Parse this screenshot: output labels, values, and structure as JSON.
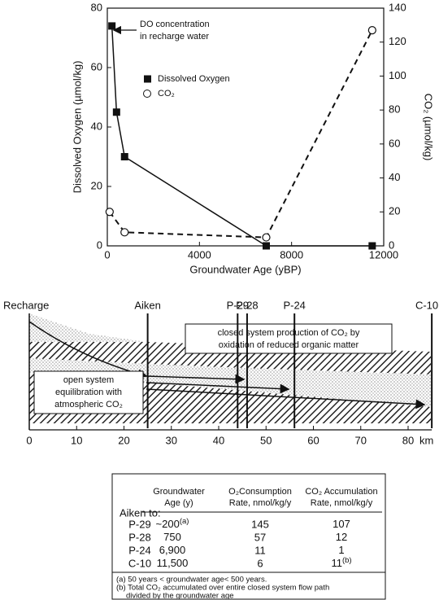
{
  "chart_data": {
    "type": "scatter",
    "xlabel": "Groundwater Age (yBP)",
    "ylabel": "Dissolved Oxygen (µmol/kg)",
    "y2label": "CO₂ (µmol/kg)",
    "annotation": [
      "DO concentration",
      "in recharge water"
    ],
    "xlim": [
      0,
      12000
    ],
    "xticks": [
      0,
      4000,
      8000,
      12000
    ],
    "ylim": [
      0,
      80
    ],
    "yticks": [
      0,
      20,
      40,
      60,
      80
    ],
    "y2lim": [
      0,
      140
    ],
    "y2ticks": [
      0,
      20,
      40,
      60,
      80,
      100,
      120,
      140
    ],
    "series": [
      {
        "name": "Dissolved Oxygen",
        "color": "#111111",
        "marker": "square",
        "line_style": "solid",
        "x": [
          200,
          400,
          750,
          6900,
          11500
        ],
        "values": [
          74,
          45,
          30,
          0,
          0
        ]
      },
      {
        "name": "CO₂",
        "color": "#111111",
        "marker": "circle",
        "line_style": "dashed",
        "axis": "y2",
        "x": [
          100,
          750,
          6900,
          11500
        ],
        "values": [
          20,
          8,
          5,
          127
        ]
      }
    ]
  },
  "diagram": {
    "recharge": "Recharge",
    "km_label": "km",
    "xticks": [
      0,
      10,
      20,
      30,
      40,
      50,
      60,
      70,
      80
    ],
    "wells": [
      {
        "label": "Aiken",
        "km": 25
      },
      {
        "label": "P-29",
        "km": 44
      },
      {
        "label": "P-28",
        "km": 46
      },
      {
        "label": "P-24",
        "km": 56
      },
      {
        "label": "C-10",
        "km": 85
      }
    ],
    "closed_box": [
      "closed system production of CO₂ by",
      "oxidation of reduced organic matter"
    ],
    "open_box": [
      "open system",
      "equilibration with",
      "atmospheric CO₂"
    ]
  },
  "table": {
    "row_header": "Aiken to:",
    "headers": [
      [
        "Groundwater",
        "Age  (y)"
      ],
      [
        "O₂Consumption",
        "Rate, nmol/kg/y"
      ],
      [
        "CO₂ Accumulation",
        "Rate, nmol/kg/y"
      ]
    ],
    "rows": [
      [
        "P-29",
        {
          "text": "~200",
          "sup": "(a)"
        },
        "145",
        {
          "text": "107",
          "sup": ""
        }
      ],
      [
        "P-28",
        {
          "text": "750",
          "sup": ""
        },
        "57",
        {
          "text": "12",
          "sup": ""
        }
      ],
      [
        "P-24",
        {
          "text": "6,900",
          "sup": ""
        },
        "11",
        {
          "text": "1",
          "sup": ""
        }
      ],
      [
        "C-10",
        {
          "text": "11,500",
          "sup": ""
        },
        "6",
        {
          "text": "11",
          "sup": "(b)"
        }
      ]
    ],
    "footnotes": [
      "(a)  50 years < groundwater age< 500 years.",
      "(b)  Total CO₂ accumulated over entire closed system flow path",
      "divided by the groundwater age"
    ]
  }
}
